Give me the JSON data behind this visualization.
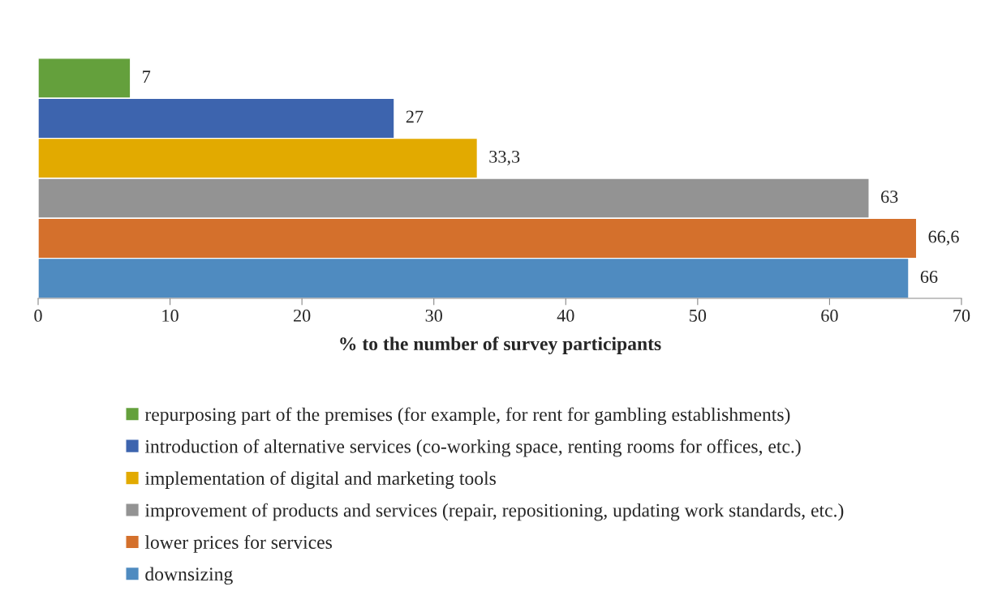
{
  "chart_data": {
    "type": "bar",
    "orientation": "horizontal",
    "xlabel": "% to the number of survey participants",
    "categories": [
      null
    ],
    "series": [
      {
        "name": "repurposing part of the premises (for example, for rent for gambling establishments)",
        "color": "#64a03c",
        "values": [
          7
        ],
        "value_labels": [
          "7"
        ]
      },
      {
        "name": "introduction of alternative services (co-working space, renting rooms for offices, etc.)",
        "color": "#3d64ae",
        "values": [
          27
        ],
        "value_labels": [
          "27"
        ]
      },
      {
        "name": "implementation of digital and marketing tools",
        "color": "#e2aa00",
        "values": [
          33.3
        ],
        "value_labels": [
          "33,3"
        ]
      },
      {
        "name": "improvement of products and services (repair, repositioning, updating work standards, etc.)",
        "color": "#939393",
        "values": [
          63
        ],
        "value_labels": [
          "63"
        ]
      },
      {
        "name": "lower prices for services",
        "color": "#d4702c",
        "values": [
          66.6
        ],
        "value_labels": [
          "66,6"
        ]
      },
      {
        "name": "downsizing",
        "color": "#4f8bc0",
        "values": [
          66
        ],
        "value_labels": [
          "66"
        ]
      }
    ],
    "xlim": [
      0,
      70
    ],
    "xticks": [
      0,
      10,
      20,
      30,
      40,
      50,
      60,
      70
    ],
    "tick_labels": "x",
    "grid": false,
    "legend": "bottom"
  }
}
